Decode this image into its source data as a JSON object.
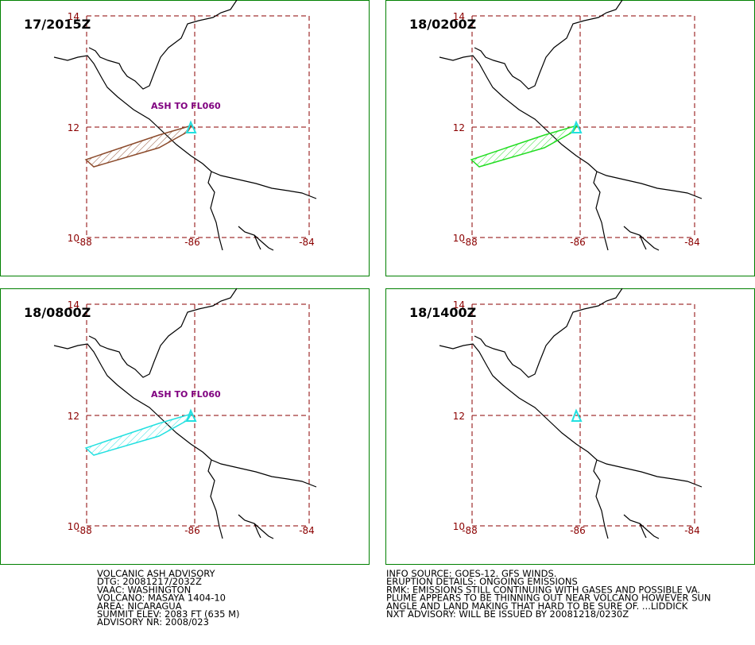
{
  "panels": [
    {
      "time": "17/2015Z",
      "annotation": "ASH TO FL060",
      "plume_color": "#8b4a2b"
    },
    {
      "time": "18/0200Z",
      "plume_color": "#22dd22"
    },
    {
      "time": "18/0800Z",
      "annotation": "ASH TO FL060",
      "plume_color": "#22e0e0"
    },
    {
      "time": "18/1400Z"
    }
  ],
  "lat_labels": [
    "14",
    "12",
    "10"
  ],
  "lon_labels": [
    "-88",
    "-86",
    "-84"
  ],
  "advisory": {
    "left": [
      "VOLCANIC ASH ADVISORY",
      "DTG: 20081217/2032Z",
      "VAAC: WASHINGTON",
      "VOLCANO: MASAYA 1404-10",
      "AREA: NICARAGUA",
      "SUMMIT ELEV: 2083 FT (635 M)",
      "ADVISORY NR: 2008/023"
    ],
    "right": [
      "INFO SOURCE: GOES-12. GFS WINDS.",
      "ERUPTION DETAILS: ONGOING EMISSIONS",
      "RMK: EMISSIONS STILL CONTINUING WITH GASES AND POSSIBLE VA.",
      "PLUME APPEARS TO BE THINNING OUT NEAR VOLCANO HOWEVER SUN",
      "ANGLE AND LAND MAKING THAT HARD TO BE SURE OF. ...LIDDICK",
      "NXT ADVISORY: WILL BE ISSUED BY 20081218/0230Z"
    ]
  }
}
